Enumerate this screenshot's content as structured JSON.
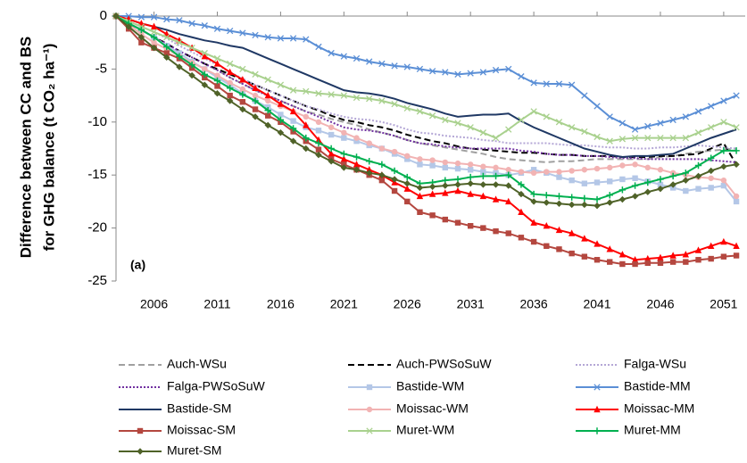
{
  "chart_data": {
    "type": "line",
    "ylabel": [
      "Difference between CC and BS",
      "for GHG balance (t CO₂ ha⁻¹)"
    ],
    "annotation": "(a)",
    "x": [
      2003,
      2004,
      2005,
      2006,
      2007,
      2008,
      2009,
      2010,
      2011,
      2012,
      2013,
      2014,
      2015,
      2016,
      2017,
      2018,
      2019,
      2020,
      2021,
      2022,
      2023,
      2024,
      2025,
      2026,
      2027,
      2028,
      2029,
      2030,
      2031,
      2032,
      2033,
      2034,
      2035,
      2036,
      2037,
      2038,
      2039,
      2040,
      2041,
      2042,
      2043,
      2044,
      2045,
      2046,
      2047,
      2048,
      2049,
      2050,
      2051,
      2052
    ],
    "xlim": [
      2003,
      2052.7
    ],
    "xticks": [
      2006,
      2011,
      2016,
      2021,
      2026,
      2031,
      2036,
      2041,
      2046,
      2051
    ],
    "ylim": [
      -25,
      0
    ],
    "yticks": [
      -25,
      -20,
      -15,
      -10,
      -5,
      0
    ],
    "series": [
      {
        "name": "Auch-WSu",
        "color": "#a0a0a0",
        "dash": "dashed",
        "marker": "none",
        "values": [
          0,
          -0.7,
          -1.3,
          -2,
          -2.6,
          -3.3,
          -3.9,
          -4.5,
          -5.1,
          -5.8,
          -6.4,
          -7,
          -7.5,
          -8,
          -8.5,
          -9,
          -9.3,
          -9.7,
          -10,
          -10.3,
          -10.7,
          -11,
          -11.3,
          -11.7,
          -12,
          -12.2,
          -12.4,
          -12.6,
          -12.8,
          -13,
          -13.3,
          -13.5,
          -13.6,
          -13.7,
          -13.8,
          -13.7,
          -13.7,
          -13.6,
          -13.5,
          -13.5,
          -13.5,
          -13.5,
          -13.5,
          -13.3,
          -13.2,
          -13,
          -12.8,
          -12.7,
          -12.6,
          -12.5
        ]
      },
      {
        "name": "Auch-PWSoSuW",
        "color": "#000000",
        "dash": "dashed",
        "marker": "none",
        "values": [
          0,
          -0.7,
          -1.3,
          -2,
          -2.6,
          -3.3,
          -3.9,
          -4.5,
          -5,
          -5.5,
          -6,
          -6.5,
          -7,
          -7.5,
          -8,
          -8.5,
          -8.9,
          -9.4,
          -9.8,
          -10,
          -10.3,
          -10.5,
          -10.8,
          -11.2,
          -11.5,
          -11.8,
          -12,
          -12.3,
          -12.5,
          -12.6,
          -12.7,
          -12.8,
          -12.9,
          -12.9,
          -13,
          -13.1,
          -13.1,
          -13.2,
          -13.2,
          -13.2,
          -13.3,
          -13.3,
          -13.3,
          -13.2,
          -13.2,
          -13.1,
          -13,
          -12.5,
          -12,
          -14
        ]
      },
      {
        "name": "Falga-WSu",
        "color": "#b4a7d6",
        "dash": "dotted",
        "marker": "none",
        "values": [
          0,
          -0.5,
          -1,
          -1.5,
          -2.1,
          -2.8,
          -3.4,
          -4,
          -4.6,
          -5.3,
          -5.9,
          -6.5,
          -7,
          -7.5,
          -8,
          -8.5,
          -8.8,
          -9.2,
          -9.5,
          -9.7,
          -9.8,
          -10,
          -10.3,
          -10.7,
          -11,
          -11.1,
          -11.3,
          -11.4,
          -11.5,
          -11.7,
          -11.8,
          -12,
          -12,
          -12,
          -12,
          -12.1,
          -12.2,
          -12.2,
          -12.3,
          -12.4,
          -12.4,
          -12.5,
          -12.5,
          -12.4,
          -12.4,
          -12.3,
          -12.2,
          -12.3,
          -12.4,
          -12.5
        ]
      },
      {
        "name": "Falga-PWSoSuW",
        "color": "#7030a0",
        "dash": "dotted",
        "marker": "none",
        "values": [
          0,
          -0.7,
          -1.3,
          -2,
          -2.6,
          -3.3,
          -3.9,
          -4.5,
          -5.1,
          -5.8,
          -6.4,
          -7,
          -7.5,
          -8,
          -8.5,
          -9,
          -9.5,
          -10,
          -10.5,
          -10.7,
          -10.8,
          -11,
          -11.3,
          -11.7,
          -12,
          -12.1,
          -12.3,
          -12.4,
          -12.5,
          -12.5,
          -12.5,
          -12.5,
          -12.7,
          -12.8,
          -13,
          -13.1,
          -13.1,
          -13.2,
          -13.2,
          -13.3,
          -13.4,
          -13.4,
          -13.5,
          -13.5,
          -13.5,
          -13.5,
          -13.5,
          -13.6,
          -13.7,
          -13.8
        ]
      },
      {
        "name": "Bastide-WM",
        "color": "#b4c7e7",
        "dash": "solid",
        "marker": "square",
        "values": [
          0,
          -0.7,
          -1.3,
          -2,
          -2.8,
          -3.5,
          -4.3,
          -5,
          -5.8,
          -6.5,
          -7.3,
          -8,
          -8.6,
          -9.3,
          -9.9,
          -10.5,
          -10.8,
          -11.2,
          -11.5,
          -11.8,
          -12.2,
          -12.5,
          -13,
          -13.5,
          -14,
          -14.1,
          -14.3,
          -14.4,
          -14.5,
          -14.7,
          -14.8,
          -15,
          -14.8,
          -14.5,
          -14.8,
          -15.2,
          -15.5,
          -15.8,
          -15.7,
          -15.6,
          -15.4,
          -15.3,
          -15.6,
          -15.9,
          -16.2,
          -16.5,
          -16.3,
          -16.2,
          -16,
          -17.5
        ]
      },
      {
        "name": "Bastide-MM",
        "color": "#5b8fd6",
        "dash": "solid",
        "marker": "x",
        "values": [
          0,
          0,
          -0.1,
          -0.1,
          -0.3,
          -0.4,
          -0.7,
          -0.9,
          -1.2,
          -1.4,
          -1.6,
          -1.8,
          -2,
          -2.1,
          -2.1,
          -2.2,
          -2.9,
          -3.5,
          -3.8,
          -4,
          -4.3,
          -4.5,
          -4.7,
          -4.8,
          -5,
          -5.2,
          -5.3,
          -5.5,
          -5.4,
          -5.3,
          -5.1,
          -5,
          -5.7,
          -6.3,
          -6.4,
          -6.4,
          -6.5,
          -7.5,
          -8.5,
          -9.5,
          -10.1,
          -10.7,
          -10.4,
          -10.1,
          -9.8,
          -9.5,
          -9,
          -8.5,
          -8,
          -7.5
        ]
      },
      {
        "name": "Bastide-SM",
        "color": "#1f3864",
        "dash": "solid",
        "marker": "none",
        "values": [
          0,
          -0.3,
          -0.7,
          -1,
          -1.3,
          -1.7,
          -2,
          -2.3,
          -2.5,
          -2.8,
          -3,
          -3.5,
          -4,
          -4.5,
          -5,
          -5.5,
          -6,
          -6.5,
          -7,
          -7.2,
          -7.3,
          -7.5,
          -7.8,
          -8.2,
          -8.5,
          -8.8,
          -9.2,
          -9.5,
          -9.4,
          -9.3,
          -9.3,
          -9.2,
          -9.9,
          -10.5,
          -11,
          -11.5,
          -12,
          -12.5,
          -12.8,
          -13.1,
          -13.3,
          -13.2,
          -13.2,
          -13.1,
          -13,
          -12.5,
          -12,
          -11.5,
          -11.1,
          -10.7
        ]
      },
      {
        "name": "Moissac-WM",
        "color": "#f2b3b3",
        "dash": "solid",
        "marker": "circle",
        "values": [
          0,
          -0.8,
          -1.7,
          -2.5,
          -3.1,
          -3.8,
          -4.4,
          -5,
          -5.6,
          -6.3,
          -6.9,
          -7.5,
          -8,
          -8.5,
          -9,
          -9.5,
          -10,
          -10.5,
          -11,
          -11.5,
          -12,
          -12.5,
          -12.8,
          -13.2,
          -13.5,
          -13.6,
          -13.8,
          -13.9,
          -14,
          -14.2,
          -14.3,
          -14.5,
          -14.7,
          -14.8,
          -14.7,
          -14.7,
          -14.6,
          -14.5,
          -14.4,
          -14.3,
          -14.1,
          -14,
          -14.3,
          -14.5,
          -14.8,
          -15,
          -15.2,
          -15.3,
          -15.5,
          -17
        ]
      },
      {
        "name": "Moissac-MM",
        "color": "#ff0000",
        "dash": "solid",
        "marker": "triangle",
        "values": [
          0,
          -0.3,
          -0.7,
          -1,
          -1.7,
          -2.3,
          -3,
          -3.8,
          -4.5,
          -5.3,
          -6,
          -6.8,
          -7.5,
          -8.3,
          -9,
          -10.3,
          -11.7,
          -13,
          -13.5,
          -14,
          -14.5,
          -15,
          -15.7,
          -16.3,
          -17,
          -16.8,
          -16.7,
          -16.5,
          -16.8,
          -17,
          -17.3,
          -17.5,
          -18.5,
          -19.5,
          -19.8,
          -20.2,
          -20.5,
          -21,
          -21.5,
          -22,
          -22.5,
          -23,
          -22.9,
          -22.8,
          -22.6,
          -22.5,
          -22.1,
          -21.7,
          -21.3,
          -21.7
        ]
      },
      {
        "name": "Moissac-SM",
        "color": "#b4473f",
        "dash": "solid",
        "marker": "square",
        "values": [
          0,
          -1.2,
          -2.5,
          -3,
          -3.5,
          -4,
          -4.9,
          -5.8,
          -6.6,
          -7.5,
          -8.1,
          -8.8,
          -9.4,
          -10,
          -10.9,
          -11.8,
          -12.6,
          -13.5,
          -14,
          -14.5,
          -15,
          -15.5,
          -16.5,
          -17.5,
          -18.5,
          -18.8,
          -19.2,
          -19.5,
          -19.8,
          -20,
          -20.3,
          -20.5,
          -20.9,
          -21.3,
          -21.7,
          -22,
          -22.4,
          -22.7,
          -23,
          -23.2,
          -23.4,
          -23.4,
          -23.3,
          -23.3,
          -23.2,
          -23.2,
          -23,
          -22.9,
          -22.7,
          -22.6
        ]
      },
      {
        "name": "Muret-WM",
        "color": "#a9d18e",
        "dash": "solid",
        "marker": "x",
        "values": [
          0,
          -0.5,
          -1,
          -1.5,
          -2,
          -2.5,
          -3,
          -3.5,
          -4,
          -4.5,
          -5,
          -5.5,
          -6,
          -6.5,
          -7,
          -7.1,
          -7.3,
          -7.4,
          -7.5,
          -7.7,
          -7.8,
          -8,
          -8.3,
          -8.7,
          -9,
          -9.4,
          -9.8,
          -10.1,
          -10.5,
          -11,
          -11.5,
          -10.7,
          -9.8,
          -9,
          -9.5,
          -10,
          -10.5,
          -10.9,
          -11.4,
          -11.8,
          -11.6,
          -11.5,
          -11.5,
          -11.5,
          -11.5,
          -11.5,
          -11,
          -10.5,
          -10,
          -10.5
        ]
      },
      {
        "name": "Muret-MM",
        "color": "#00b050",
        "dash": "solid",
        "marker": "plus",
        "values": [
          0,
          -0.7,
          -1.3,
          -2,
          -2.9,
          -3.8,
          -4.6,
          -5.5,
          -6.1,
          -6.8,
          -7.4,
          -8,
          -8.9,
          -9.8,
          -10.6,
          -11.5,
          -12,
          -12.5,
          -13,
          -13.3,
          -13.7,
          -14,
          -14.6,
          -15.2,
          -15.8,
          -15.7,
          -15.5,
          -15.4,
          -15.2,
          -15.1,
          -15.1,
          -15,
          -15.9,
          -16.8,
          -16.9,
          -17,
          -17.1,
          -17.2,
          -17.3,
          -16.9,
          -16.4,
          -16,
          -15.7,
          -15.4,
          -15.1,
          -14.8,
          -14.1,
          -13.4,
          -12.7,
          -12.7
        ]
      },
      {
        "name": "Muret-SM",
        "color": "#4f6228",
        "dash": "solid",
        "marker": "diamond",
        "values": [
          0,
          -1,
          -2,
          -3,
          -3.9,
          -4.8,
          -5.6,
          -6.5,
          -7.3,
          -8,
          -8.8,
          -9.5,
          -10.3,
          -11,
          -11.8,
          -12.5,
          -13.1,
          -13.7,
          -14.3,
          -14.5,
          -14.8,
          -15,
          -15.4,
          -15.8,
          -16.2,
          -16.1,
          -16,
          -15.9,
          -15.8,
          -15.9,
          -15.9,
          -16,
          -16.8,
          -17.5,
          -17.6,
          -17.7,
          -17.8,
          -17.8,
          -17.9,
          -17.6,
          -17.3,
          -17,
          -16.6,
          -16.3,
          -15.9,
          -15.5,
          -15.1,
          -14.6,
          -14.2,
          -14
        ]
      }
    ]
  }
}
